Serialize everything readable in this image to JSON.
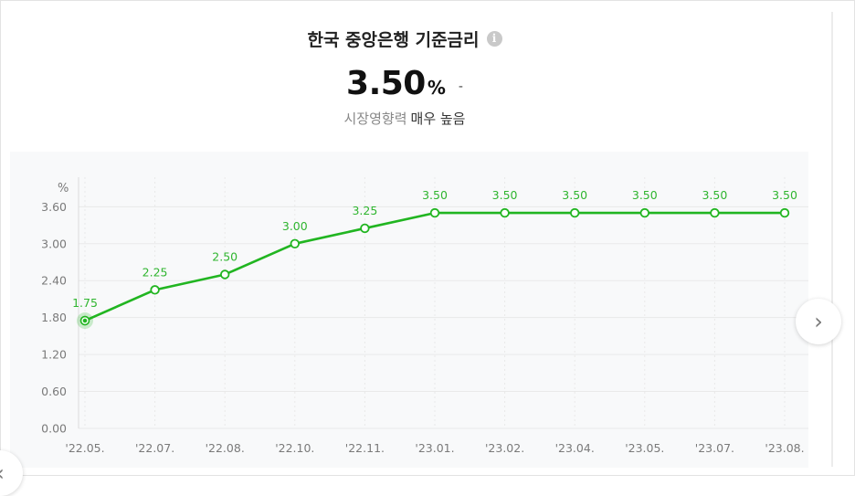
{
  "header": {
    "title": "한국 중앙은행 기준금리",
    "info_icon": "info-icon"
  },
  "summary": {
    "value": "3.50",
    "unit": "%",
    "change": "-",
    "influence_label": "시장영향력",
    "influence_value": "매우 높음"
  },
  "nav": {
    "prev_icon": "chevron-left-icon",
    "next_icon": "chevron-right-icon",
    "prev_glyph": "‹",
    "next_glyph": "›"
  },
  "colors": {
    "line": "#21b521",
    "label": "#2fb52f",
    "grid": "#e9e9e9",
    "axis_text": "#7a7a7a"
  },
  "chart_data": {
    "type": "line",
    "ylabel": "%",
    "categories": [
      "'22.05.",
      "'22.07.",
      "'22.08.",
      "'22.10.",
      "'22.11.",
      "'23.01.",
      "'23.02.",
      "'23.04.",
      "'23.05.",
      "'23.07.",
      "'23.08."
    ],
    "series": [
      {
        "values": [
          1.75,
          2.25,
          2.5,
          3.0,
          3.25,
          3.5,
          3.5,
          3.5,
          3.5,
          3.5,
          3.5
        ]
      }
    ],
    "data_labels": [
      "1.75",
      "2.25",
      "2.50",
      "3.00",
      "3.25",
      "3.50",
      "3.50",
      "3.50",
      "3.50",
      "3.50",
      "3.50"
    ],
    "y_ticks": [
      "0.00",
      "0.60",
      "1.20",
      "1.80",
      "2.40",
      "3.00",
      "3.60"
    ],
    "ylim": [
      0,
      4.08
    ],
    "highlighted_index": 0,
    "grid": true
  }
}
